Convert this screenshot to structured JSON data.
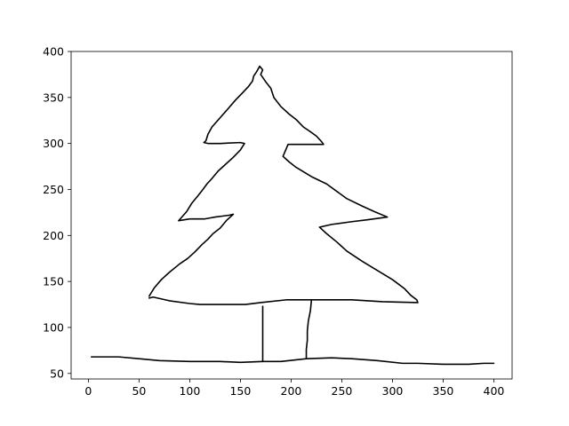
{
  "chart_data": {
    "type": "line",
    "title": "",
    "xlabel": "",
    "ylabel": "",
    "xlim": [
      -17,
      418
    ],
    "ylim": [
      44,
      400
    ],
    "xticks": [
      0,
      50,
      100,
      150,
      200,
      250,
      300,
      350,
      400
    ],
    "yticks": [
      50,
      100,
      150,
      200,
      250,
      300,
      350,
      400
    ],
    "grid": false,
    "legend": "none",
    "line_color": "#000000",
    "series": [
      {
        "values": [
          [
            60,
            132
          ],
          [
            64,
            133
          ],
          [
            80,
            129
          ],
          [
            100,
            126
          ],
          [
            110,
            125
          ],
          [
            130,
            125
          ],
          [
            155,
            125
          ],
          [
            170,
            127
          ],
          [
            195,
            130
          ],
          [
            230,
            130
          ],
          [
            260,
            130
          ],
          [
            290,
            128
          ],
          [
            325,
            127
          ],
          [
            324,
            130
          ],
          [
            318,
            135
          ],
          [
            312,
            142
          ],
          [
            300,
            152
          ],
          [
            285,
            162
          ],
          [
            270,
            172
          ],
          [
            255,
            183
          ],
          [
            245,
            193
          ],
          [
            235,
            202
          ],
          [
            228,
            209
          ],
          [
            240,
            212
          ],
          [
            260,
            215
          ],
          [
            275,
            217
          ],
          [
            295,
            220
          ],
          [
            282,
            226
          ],
          [
            270,
            232
          ],
          [
            255,
            240
          ],
          [
            245,
            248
          ],
          [
            235,
            256
          ],
          [
            220,
            264
          ],
          [
            205,
            274
          ],
          [
            198,
            280
          ],
          [
            195,
            283
          ],
          [
            192,
            286
          ],
          [
            197,
            299
          ],
          [
            232,
            299
          ],
          [
            230,
            302
          ],
          [
            225,
            308
          ],
          [
            220,
            312
          ],
          [
            212,
            318
          ],
          [
            205,
            326
          ],
          [
            198,
            332
          ],
          [
            190,
            340
          ],
          [
            183,
            350
          ],
          [
            180,
            360
          ],
          [
            175,
            367
          ],
          [
            170,
            375
          ],
          [
            172,
            380
          ],
          [
            169,
            384
          ],
          [
            166,
            378
          ],
          [
            163,
            373
          ],
          [
            162,
            368
          ],
          [
            158,
            362
          ],
          [
            152,
            355
          ],
          [
            145,
            347
          ],
          [
            138,
            338
          ],
          [
            130,
            328
          ],
          [
            122,
            318
          ],
          [
            118,
            310
          ],
          [
            116,
            303
          ],
          [
            114,
            301
          ],
          [
            118,
            300
          ],
          [
            130,
            300
          ],
          [
            150,
            301
          ],
          [
            154,
            300
          ],
          [
            150,
            293
          ],
          [
            143,
            285
          ],
          [
            135,
            277
          ],
          [
            128,
            270
          ],
          [
            122,
            262
          ],
          [
            117,
            256
          ],
          [
            113,
            250
          ],
          [
            108,
            243
          ],
          [
            102,
            235
          ],
          [
            97,
            226
          ],
          [
            89,
            216
          ],
          [
            100,
            218
          ],
          [
            115,
            218
          ],
          [
            125,
            220
          ],
          [
            139,
            222
          ],
          [
            143,
            223
          ],
          [
            136,
            216
          ],
          [
            130,
            208
          ],
          [
            123,
            202
          ],
          [
            118,
            196
          ],
          [
            112,
            190
          ],
          [
            105,
            182
          ],
          [
            98,
            175
          ],
          [
            90,
            169
          ],
          [
            80,
            160
          ],
          [
            72,
            152
          ],
          [
            65,
            143
          ],
          [
            60,
            134
          ]
        ]
      },
      {
        "values": [
          [
            172,
            123
          ],
          [
            172,
            63
          ]
        ]
      },
      {
        "values": [
          [
            220,
            129
          ],
          [
            219,
            118
          ],
          [
            217,
            107
          ],
          [
            216,
            96
          ],
          [
            216,
            86
          ],
          [
            215,
            76
          ],
          [
            215,
            67
          ]
        ]
      },
      {
        "values": [
          [
            3,
            68
          ],
          [
            15,
            68
          ],
          [
            30,
            68
          ],
          [
            50,
            66
          ],
          [
            70,
            64
          ],
          [
            100,
            63
          ],
          [
            130,
            63
          ],
          [
            150,
            62
          ],
          [
            172,
            63
          ],
          [
            190,
            63
          ],
          [
            215,
            66
          ],
          [
            240,
            67
          ],
          [
            260,
            66
          ],
          [
            285,
            64
          ],
          [
            310,
            61
          ],
          [
            325,
            61
          ],
          [
            350,
            60
          ],
          [
            375,
            60
          ],
          [
            390,
            61
          ],
          [
            400,
            61
          ]
        ]
      }
    ]
  }
}
